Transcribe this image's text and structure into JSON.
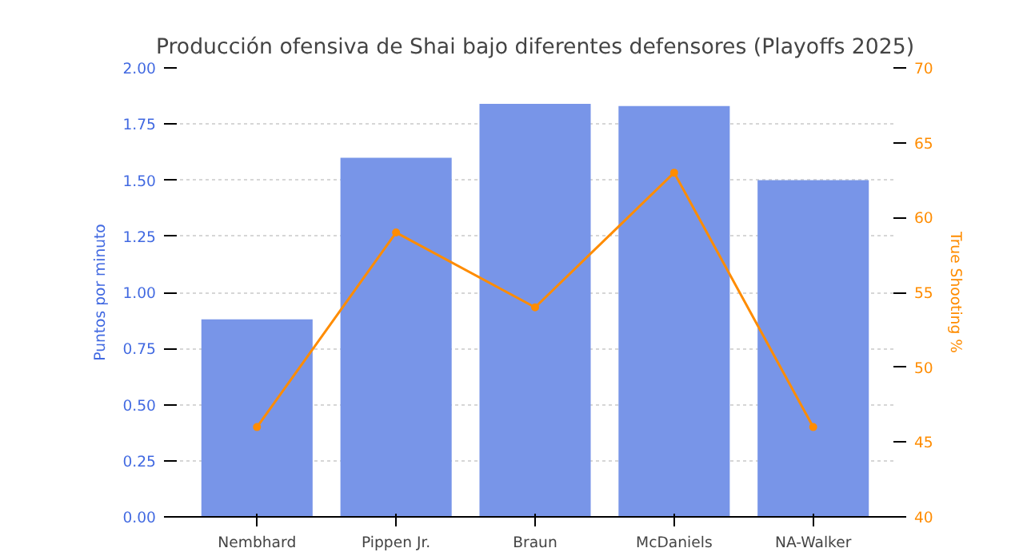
{
  "chart_data": {
    "type": "bar",
    "title": "Producción ofensiva de Shai bajo diferentes defensores (Playoffs 2025)",
    "ylabel": "Puntos por minuto",
    "y2label": "True Shooting %",
    "categories": [
      "Nembhard",
      "Pippen Jr.",
      "Braun",
      "McDaniels",
      "NA-Walker"
    ],
    "series": [
      {
        "color": "#7895e8",
        "values": [
          0.88,
          1.6,
          1.84,
          1.83,
          1.5
        ]
      },
      {
        "type": "line",
        "axis": "y2",
        "color": "#ff8c00",
        "marker": "circle",
        "values": [
          46,
          59,
          54,
          63,
          46
        ]
      }
    ],
    "ylim": [
      0,
      2
    ],
    "yticks": [
      {
        "value": 0,
        "label": "0.00"
      },
      {
        "value": 0.25,
        "label": "0.25"
      },
      {
        "value": 0.5,
        "label": "0.50"
      },
      {
        "value": 0.75,
        "label": "0.75"
      },
      {
        "value": 1,
        "label": "1.00"
      },
      {
        "value": 1.25,
        "label": "1.25"
      },
      {
        "value": 1.5,
        "label": "1.50"
      },
      {
        "value": 1.75,
        "label": "1.75"
      },
      {
        "value": 2,
        "label": "2.00"
      }
    ],
    "y2lim": [
      40,
      70
    ],
    "y2ticks": [
      40,
      45,
      50,
      55,
      60,
      65,
      70
    ],
    "grid": "y"
  }
}
